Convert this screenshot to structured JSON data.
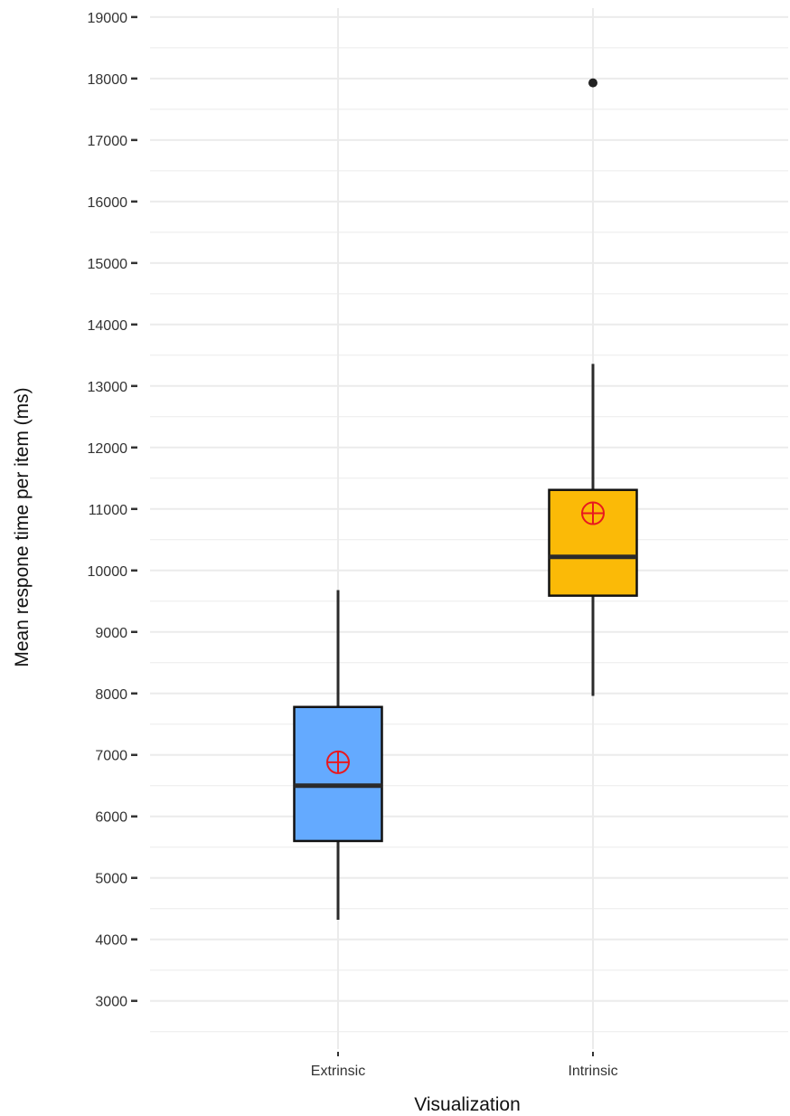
{
  "chart_data": {
    "type": "boxplot",
    "xlabel": "Visualization",
    "ylabel": "Mean respone time per item (ms)",
    "ylim": [
      2200,
      19100
    ],
    "yticks": [
      3000,
      4000,
      5000,
      6000,
      7000,
      8000,
      9000,
      10000,
      11000,
      12000,
      13000,
      14000,
      15000,
      16000,
      17000,
      18000,
      19000
    ],
    "grid": true,
    "categories": [
      "Extrinsic",
      "Intrinsic"
    ],
    "boxes": [
      {
        "category": "Extrinsic",
        "whisker_low": 4320,
        "q1": 5600,
        "median": 6500,
        "q3": 7780,
        "whisker_high": 9680,
        "mean": 6880,
        "outliers": [],
        "fill": "#64aaff"
      },
      {
        "category": "Intrinsic",
        "whisker_low": 7960,
        "q1": 9590,
        "median": 10220,
        "q3": 11310,
        "whisker_high": 13360,
        "mean": 10930,
        "outliers": [
          17930
        ],
        "fill": "#fbba07"
      }
    ],
    "colors": {
      "mean_marker": "#e8191f",
      "box_outline": "#111111",
      "median_line": "#2b2b2b",
      "grid": "#ebebeb",
      "tick_mark": "#333333"
    }
  }
}
